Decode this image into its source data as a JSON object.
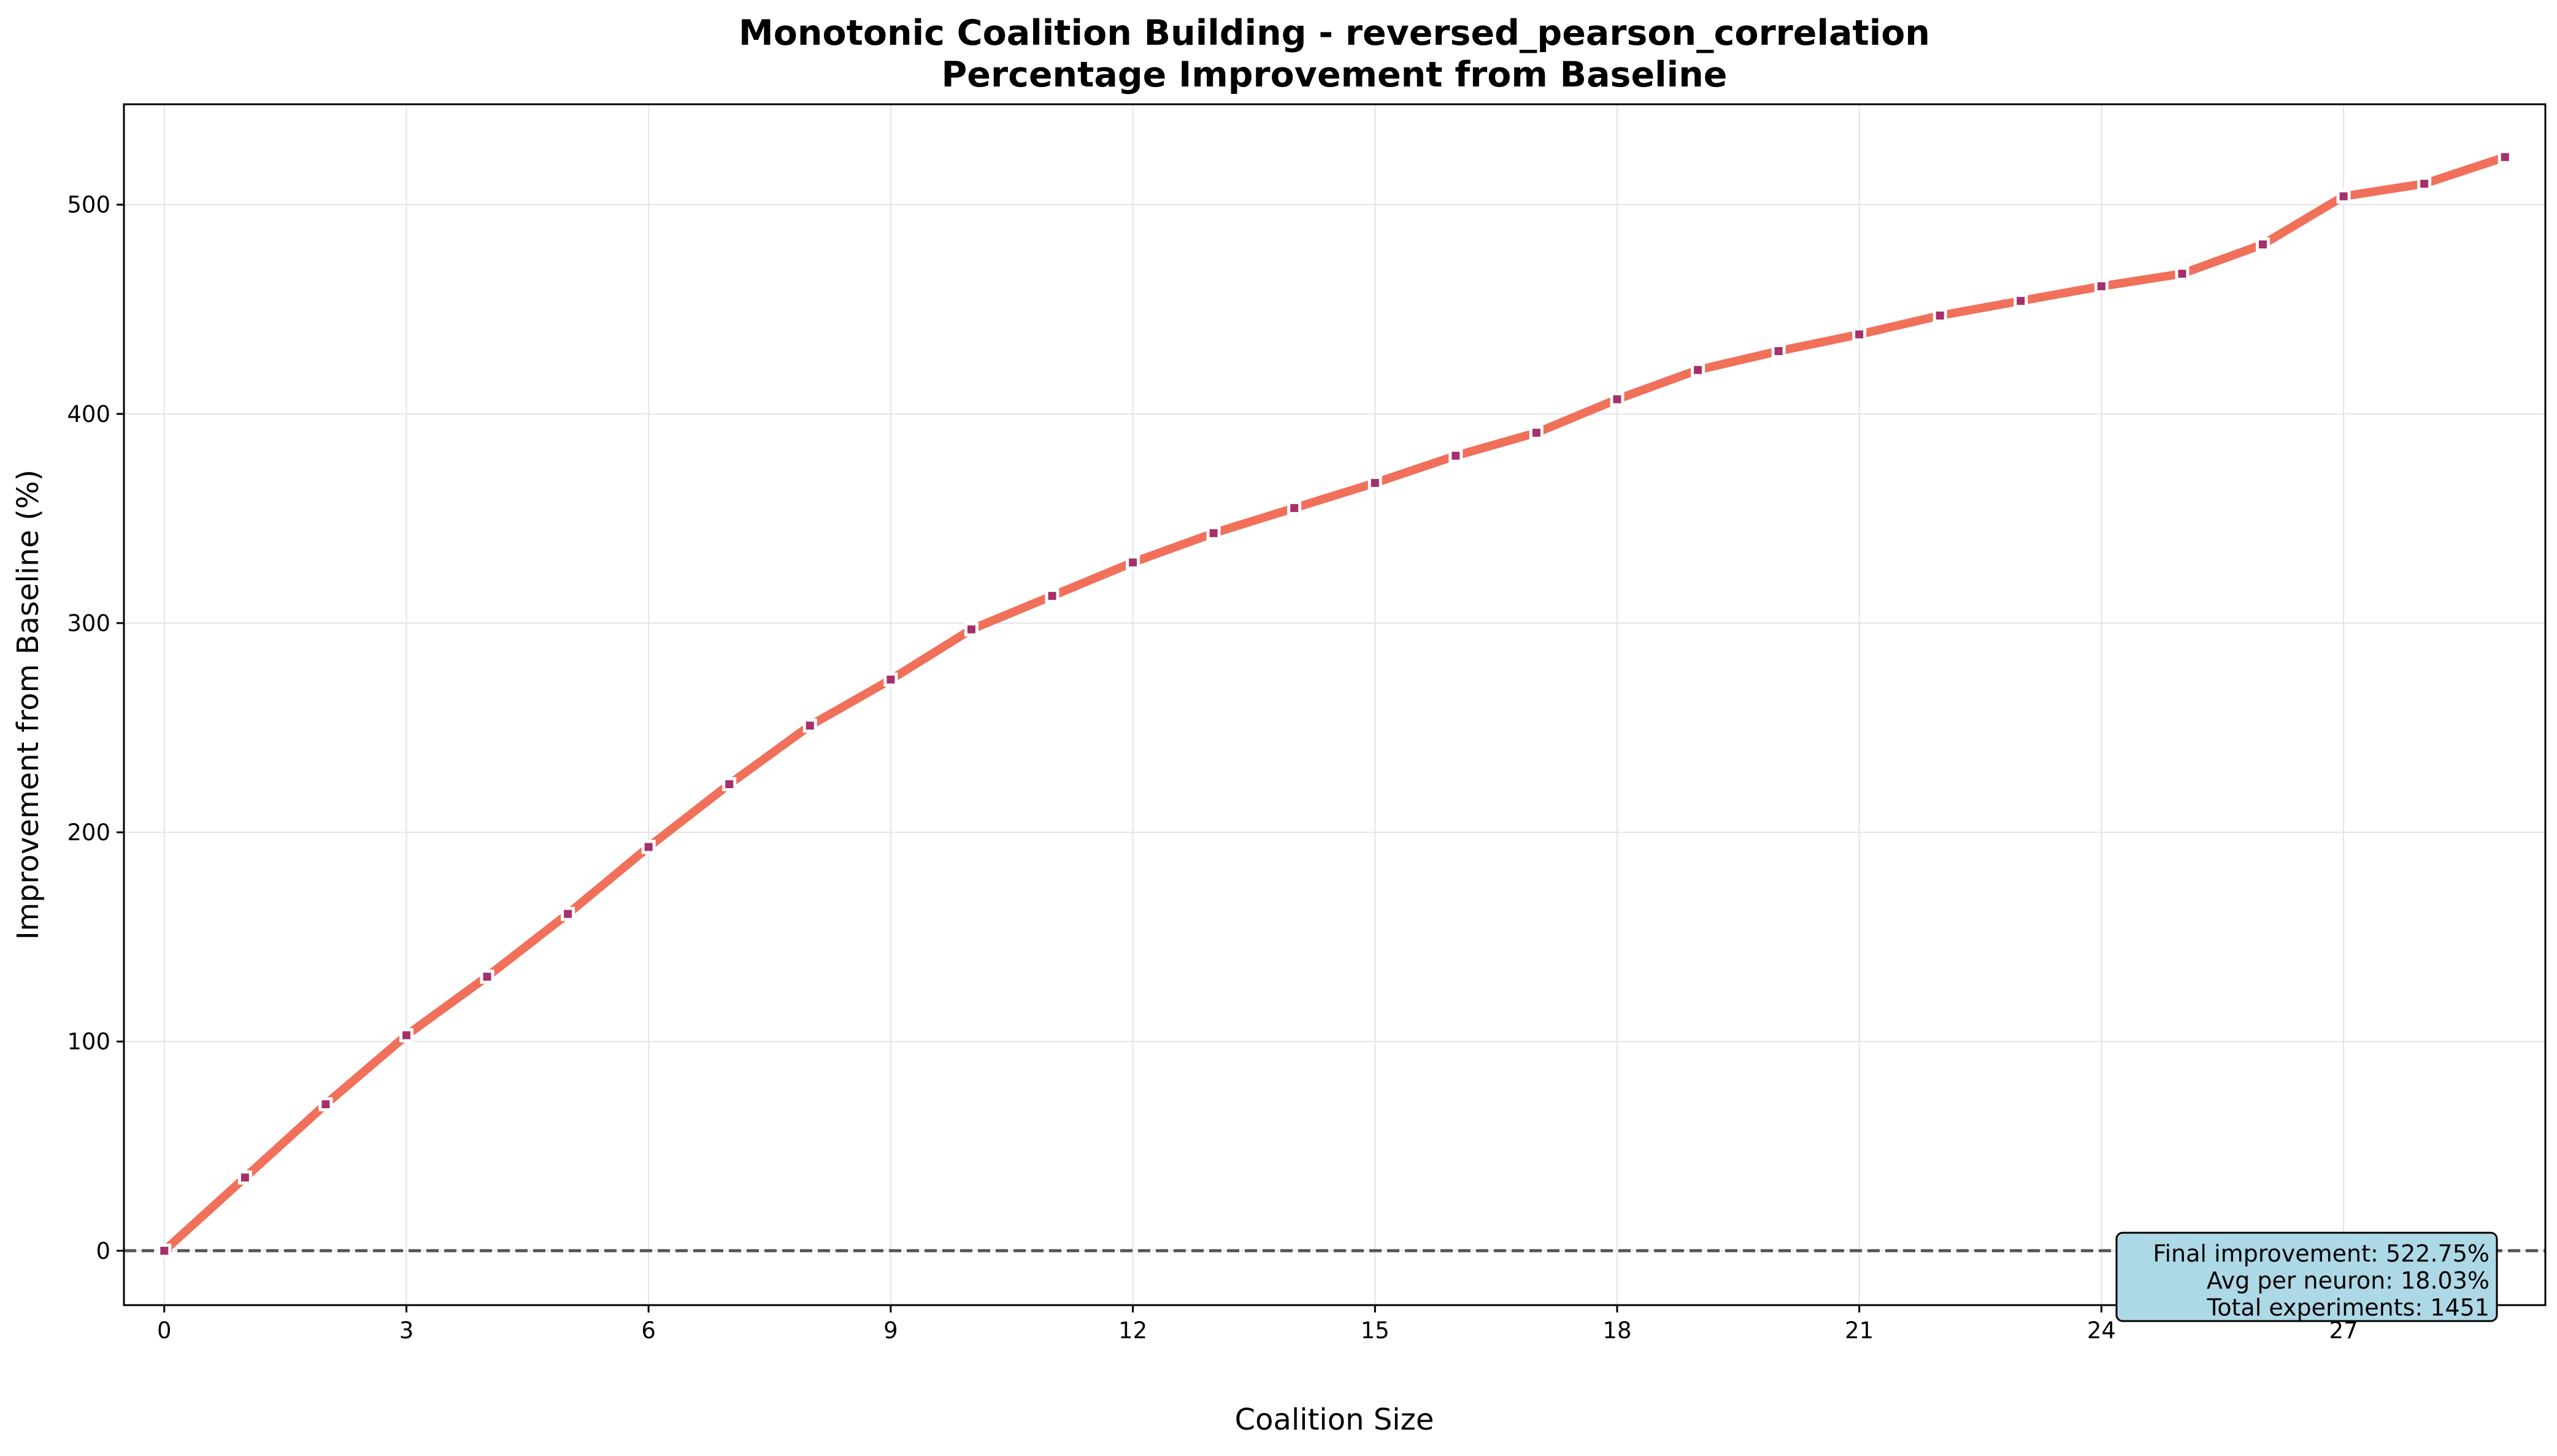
{
  "chart_data": {
    "type": "line",
    "title": "Monotonic Coalition Building - reversed_pearson_correlation",
    "subtitle": "Percentage Improvement from Baseline",
    "xlabel": "Coalition Size",
    "ylabel": "Improvement from Baseline (%)",
    "xlim": [
      -0.5,
      29.5
    ],
    "ylim": [
      -26,
      548
    ],
    "xticks": [
      "0",
      "3",
      "6",
      "9",
      "12",
      "15",
      "18",
      "21",
      "24",
      "27"
    ],
    "yticks": [
      "0",
      "100",
      "200",
      "300",
      "400",
      "500"
    ],
    "grid": true,
    "baseline": 0,
    "x": [
      0,
      1,
      2,
      3,
      4,
      5,
      6,
      7,
      8,
      9,
      10,
      11,
      12,
      13,
      14,
      15,
      16,
      17,
      18,
      19,
      20,
      21,
      22,
      23,
      24,
      25,
      26,
      27,
      28,
      29
    ],
    "series": [
      {
        "values": [
          0,
          35,
          70,
          103,
          131,
          161,
          193,
          223,
          251,
          273,
          297,
          313,
          329,
          343,
          355,
          367,
          380,
          391,
          407,
          421,
          430,
          438,
          447,
          454,
          461,
          467,
          481,
          504,
          510,
          522.75
        ],
        "color": "#f0705a",
        "marker_color": "#a5306a"
      }
    ],
    "colors": {
      "line": "#f0705a",
      "marker": "#a5306a",
      "baseline": "#555555",
      "grid": "#e4e4e4",
      "stats_bg": "#add8e6"
    },
    "stats": {
      "line1": "Final improvement: 522.75%",
      "line2": "Avg per neuron: 18.03%",
      "line3": "Total experiments: 1451"
    }
  }
}
